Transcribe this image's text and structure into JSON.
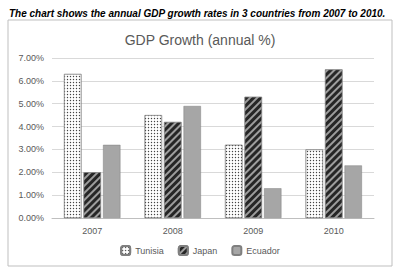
{
  "chart_data": {
    "type": "bar",
    "subtitle": "The chart shows the annual GDP growth rates in 3 countries from 2007 to 2010.",
    "title": "GDP Growth (annual %)",
    "categories": [
      "2007",
      "2008",
      "2009",
      "2010"
    ],
    "series": [
      {
        "name": "Tunisia",
        "color": "#ffffff",
        "values": [
          6.3,
          4.5,
          3.2,
          3.0
        ]
      },
      {
        "name": "Japan",
        "color": "#262626",
        "values": [
          2.0,
          4.2,
          5.3,
          6.5
        ]
      },
      {
        "name": "Ecuador",
        "color": "#a6a6a6",
        "values": [
          3.2,
          4.9,
          1.3,
          2.3
        ]
      }
    ],
    "ylim": [
      0,
      7
    ],
    "yticks": [
      {
        "value": 0,
        "label": "0.00%"
      },
      {
        "value": 1,
        "label": "1.00%"
      },
      {
        "value": 2,
        "label": "2.00%"
      },
      {
        "value": 3,
        "label": "3.00%"
      },
      {
        "value": 4,
        "label": "4.00%"
      },
      {
        "value": 5,
        "label": "5.00%"
      },
      {
        "value": 6,
        "label": "6.00%"
      },
      {
        "value": 7,
        "label": "7.00%"
      }
    ],
    "grid": true,
    "legend": "bottom"
  }
}
